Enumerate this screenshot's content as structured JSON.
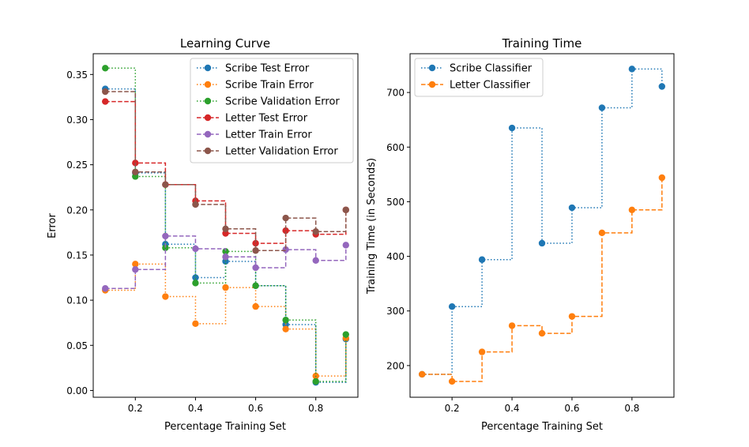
{
  "chart_data": [
    {
      "type": "line",
      "title": "Learning Curve",
      "xlabel": "Percentage Training Set",
      "ylabel": "Error",
      "xlim": [
        0.06,
        0.94
      ],
      "ylim": [
        -0.0075,
        0.373
      ],
      "xticks": [
        0.2,
        0.4,
        0.6,
        0.8
      ],
      "xtick_labels": [
        "0.2",
        "0.4",
        "0.6",
        "0.8"
      ],
      "yticks": [
        0.0,
        0.05,
        0.1,
        0.15,
        0.2,
        0.25,
        0.3,
        0.35
      ],
      "ytick_labels": [
        "0.00",
        "0.05",
        "0.10",
        "0.15",
        "0.20",
        "0.25",
        "0.30",
        "0.35"
      ],
      "legend_position": "top-right",
      "x": [
        0.1,
        0.2,
        0.3,
        0.4,
        0.5,
        0.6,
        0.7,
        0.8,
        0.9
      ],
      "series": [
        {
          "name": "Scribe Test Error",
          "color": "#1f77b4",
          "dash": "dotted",
          "values": [
            0.334,
            0.241,
            0.162,
            0.125,
            0.143,
            0.116,
            0.073,
            0.009,
            0.057
          ]
        },
        {
          "name": "Scribe Train Error",
          "color": "#ff7f0e",
          "dash": "dotted",
          "values": [
            0.111,
            0.14,
            0.104,
            0.074,
            0.114,
            0.093,
            0.068,
            0.016,
            0.058
          ]
        },
        {
          "name": "Scribe Validation Error",
          "color": "#2ca02c",
          "dash": "dotted",
          "values": [
            0.357,
            0.237,
            0.158,
            0.119,
            0.154,
            0.116,
            0.078,
            0.01,
            0.062
          ]
        },
        {
          "name": "Letter Test Error",
          "color": "#d62728",
          "dash": "dashed",
          "values": [
            0.32,
            0.252,
            0.228,
            0.21,
            0.174,
            0.163,
            0.177,
            0.173,
            0.2
          ]
        },
        {
          "name": "Letter Train Error",
          "color": "#9467bd",
          "dash": "dashed",
          "values": [
            0.113,
            0.134,
            0.171,
            0.157,
            0.148,
            0.136,
            0.156,
            0.144,
            0.161
          ]
        },
        {
          "name": "Letter Validation Error",
          "color": "#8c564b",
          "dash": "dashed",
          "values": [
            0.331,
            0.242,
            0.228,
            0.206,
            0.179,
            0.155,
            0.191,
            0.176,
            0.2
          ]
        }
      ]
    },
    {
      "type": "line",
      "title": "Training Time",
      "xlabel": "Percentage Training Set",
      "ylabel": "Training Time (in Seconds)",
      "xlim": [
        0.06,
        0.94
      ],
      "ylim": [
        142,
        771
      ],
      "xticks": [
        0.2,
        0.4,
        0.6,
        0.8
      ],
      "xtick_labels": [
        "0.2",
        "0.4",
        "0.6",
        "0.8"
      ],
      "yticks": [
        200,
        300,
        400,
        500,
        600,
        700
      ],
      "ytick_labels": [
        "200",
        "300",
        "400",
        "500",
        "600",
        "700"
      ],
      "legend_position": "top-left",
      "x": [
        0.1,
        0.2,
        0.3,
        0.4,
        0.5,
        0.6,
        0.7,
        0.8,
        0.9
      ],
      "series": [
        {
          "name": "Scribe Classifier",
          "color": "#1f77b4",
          "dash": "dotted",
          "values": [
            184,
            308,
            394,
            635,
            424,
            489,
            672,
            743,
            711
          ]
        },
        {
          "name": "Letter Classifier",
          "color": "#ff7f0e",
          "dash": "dashed",
          "values": [
            184,
            171,
            225,
            273,
            259,
            290,
            443,
            485,
            544
          ]
        }
      ]
    }
  ]
}
